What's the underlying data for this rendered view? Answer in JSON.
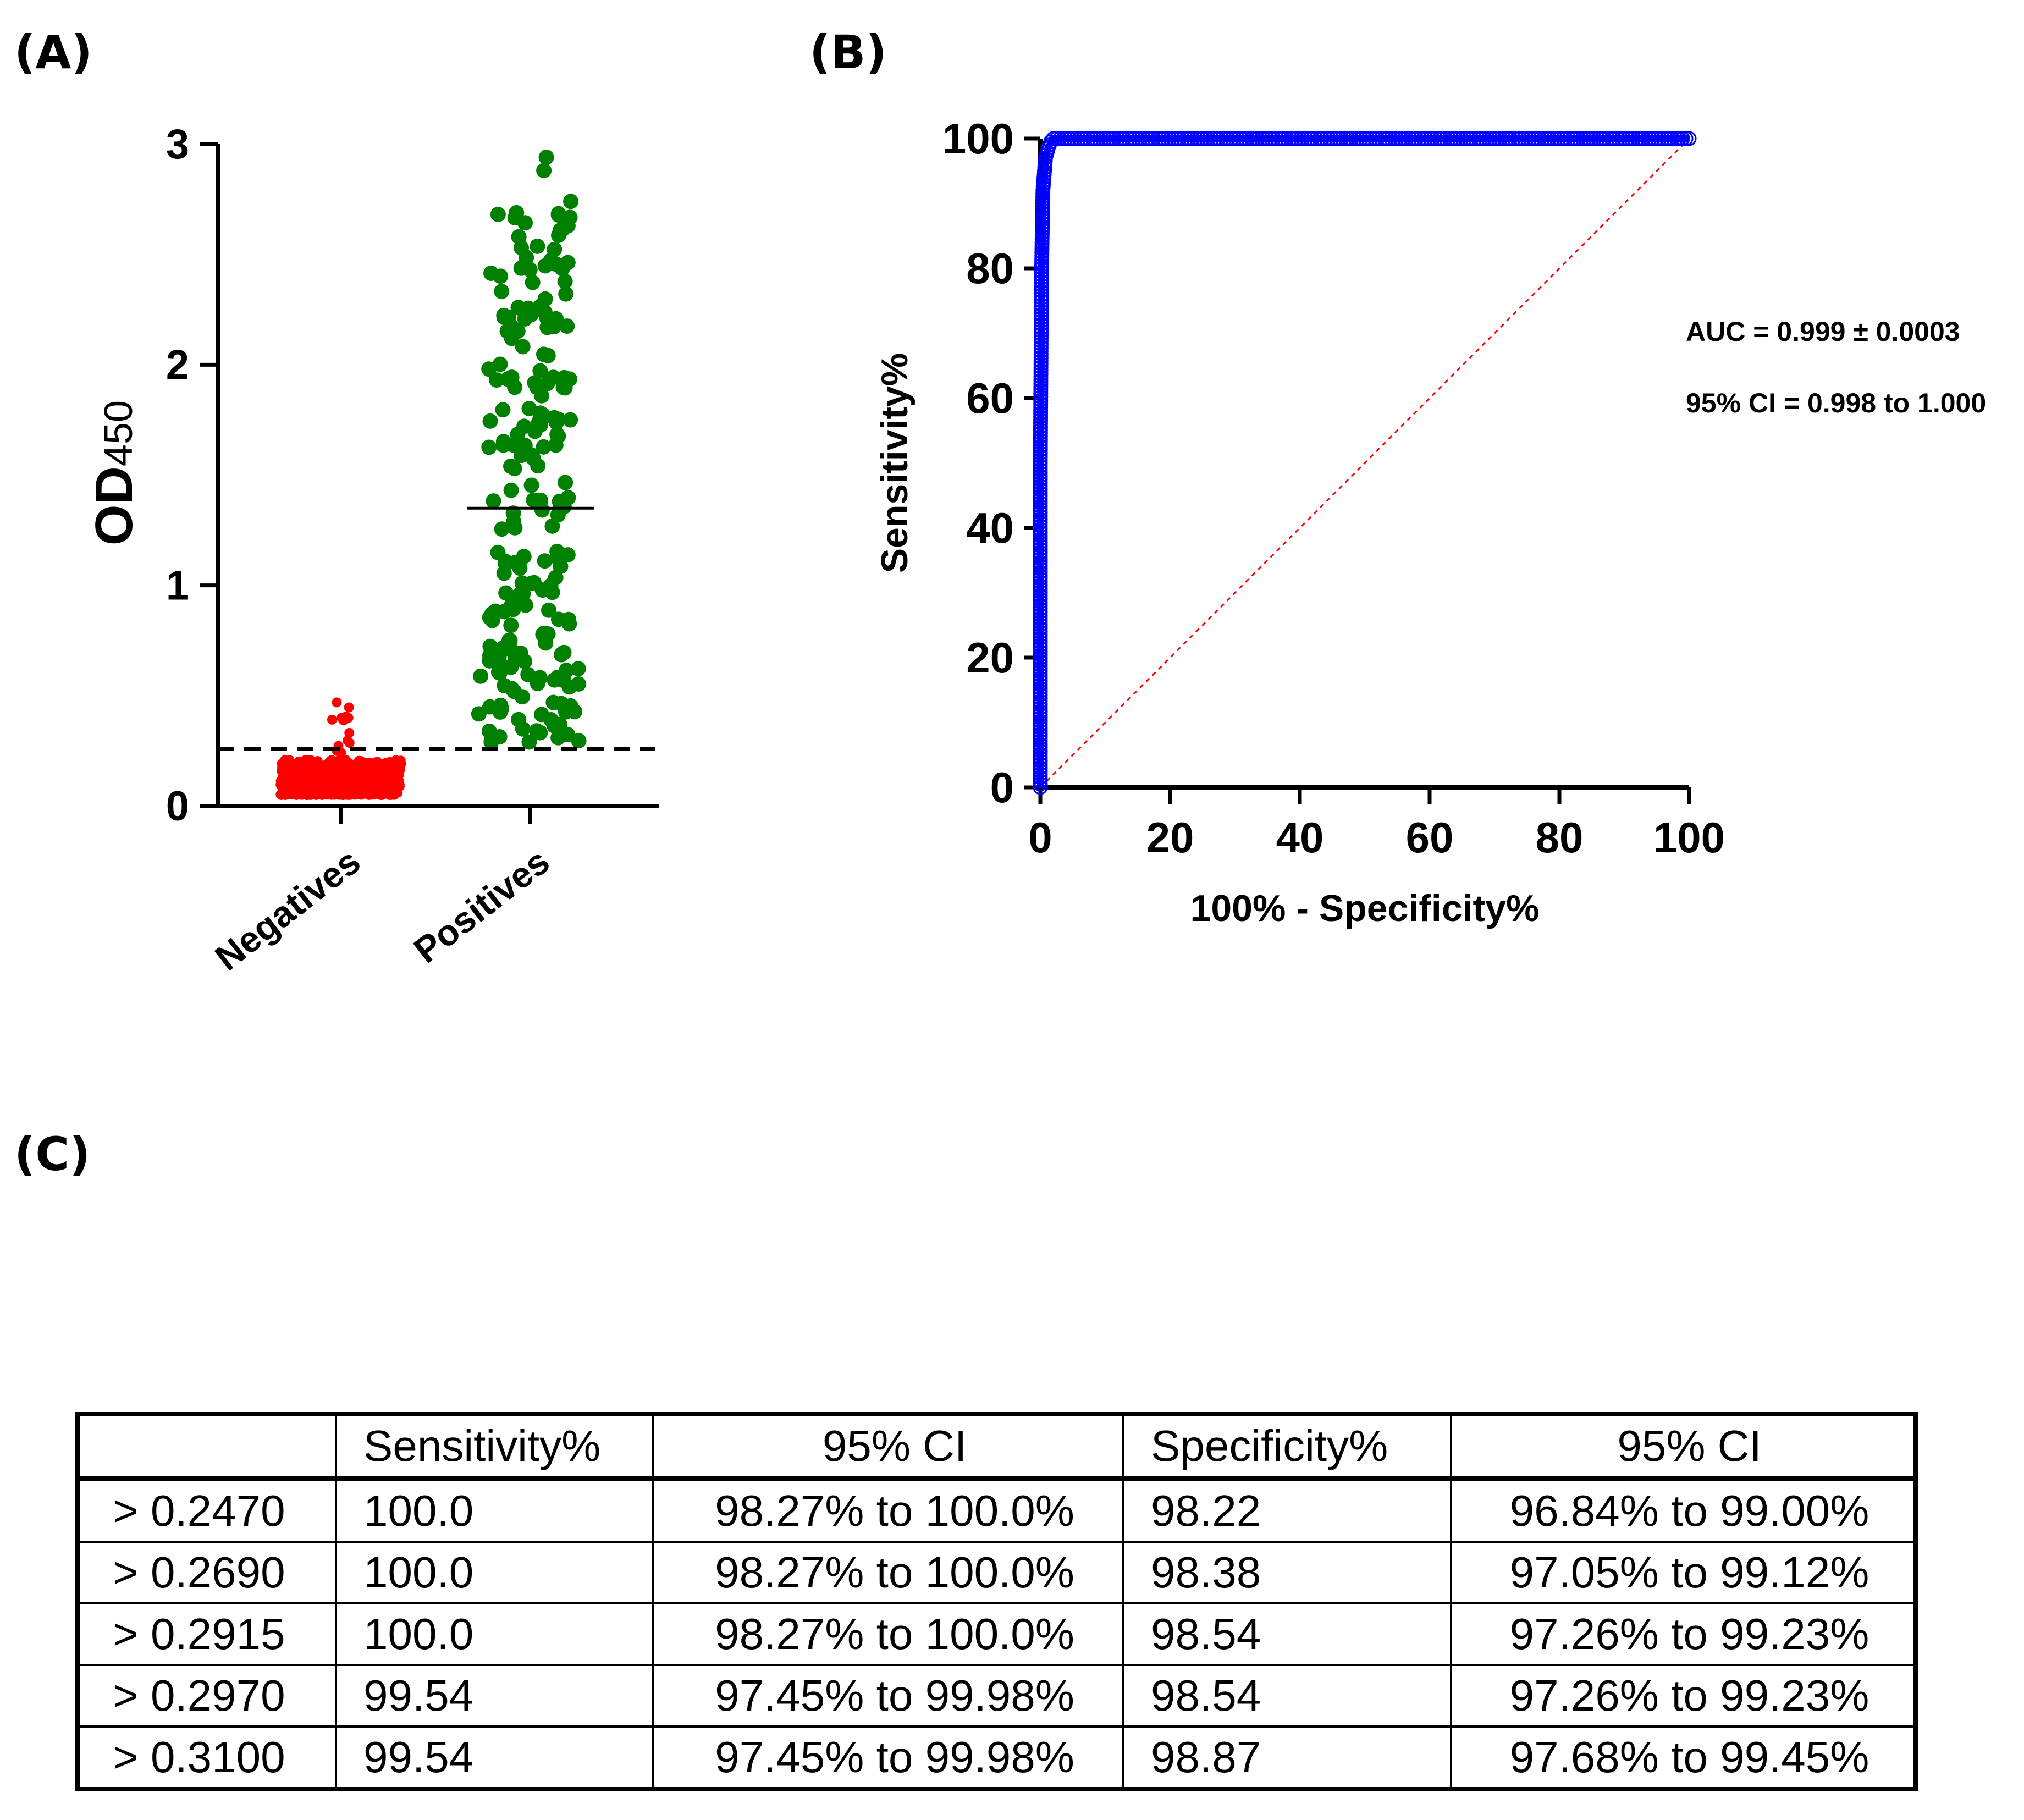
{
  "panels": {
    "a": "(A)",
    "b": "(B)",
    "c": "(C)"
  },
  "chart_data": [
    {
      "type": "scatter",
      "title": "",
      "ylabel": "OD",
      "ylabel_subscript": "450",
      "ylim": [
        0,
        3
      ],
      "yticks": [
        "0",
        "1",
        "2",
        "3"
      ],
      "categories": [
        "Negatives",
        "Positives"
      ],
      "cutoff": 0.26,
      "series": [
        {
          "name": "Negatives",
          "color": "#ff0000",
          "count": 600,
          "mean": 0.12,
          "min": 0.05,
          "max": 0.47
        },
        {
          "name": "Positives",
          "color": "#008000",
          "count": 220,
          "mean": 1.35,
          "min": 0.29,
          "max": 2.94
        }
      ]
    },
    {
      "type": "line",
      "xlabel": "100% - Specificity%",
      "ylabel": "Sensitivity%",
      "xlim": [
        0,
        100
      ],
      "ylim": [
        0,
        100
      ],
      "xticks": [
        "0",
        "20",
        "40",
        "60",
        "80",
        "100"
      ],
      "yticks": [
        "0",
        "20",
        "40",
        "60",
        "80",
        "100"
      ],
      "series": [
        {
          "name": "ROC curve",
          "color": "#0000ff",
          "x": [
            0,
            0,
            0.2,
            0.4,
            0.8,
            1.2,
            1.6,
            2.0,
            5,
            10,
            20,
            30,
            40,
            50,
            60,
            70,
            80,
            90,
            100
          ],
          "y": [
            0,
            50,
            80,
            92,
            97,
            98.5,
            99.5,
            100,
            100,
            100,
            100,
            100,
            100,
            100,
            100,
            100,
            100,
            100,
            100
          ]
        },
        {
          "name": "Reference line",
          "color": "#ff0000",
          "x": [
            0,
            100
          ],
          "y": [
            0,
            100
          ]
        }
      ],
      "annotations": [
        "AUC = 0.999 ± 0.0003",
        "95% CI = 0.998 to 1.000"
      ]
    }
  ],
  "table": {
    "headers": [
      "",
      "Sensitivity%",
      "95% CI",
      "Specificity%",
      "95% CI"
    ],
    "rows": [
      [
        "> 0.2470",
        "100.0",
        "98.27% to 100.0%",
        "98.22",
        "96.84% to 99.00%"
      ],
      [
        "> 0.2690",
        "100.0",
        "98.27% to 100.0%",
        "98.38",
        "97.05% to 99.12%"
      ],
      [
        "> 0.2915",
        "100.0",
        "98.27% to 100.0%",
        "98.54",
        "97.26% to 99.23%"
      ],
      [
        "> 0.2970",
        "99.54",
        "97.45% to 99.98%",
        "98.54",
        "97.26% to 99.23%"
      ],
      [
        "> 0.3100",
        "99.54",
        "97.45% to 99.98%",
        "98.87",
        "97.68% to 99.45%"
      ]
    ]
  }
}
